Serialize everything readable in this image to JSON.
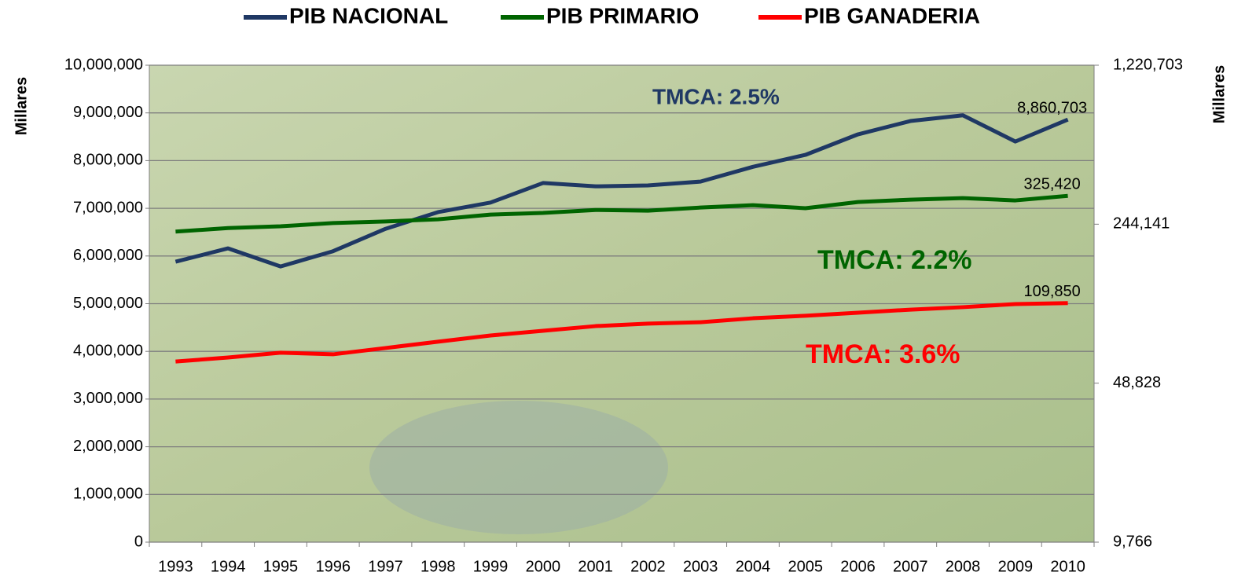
{
  "chart_data": {
    "type": "line",
    "legend_position": "top",
    "y_axis_label": "Millares",
    "y2_axis_label": "Millares",
    "categories": [
      "1993",
      "1994",
      "1995",
      "1996",
      "1997",
      "1998",
      "1999",
      "2000",
      "2001",
      "2002",
      "2003",
      "2004",
      "2005",
      "2006",
      "2007",
      "2008",
      "2009",
      "2010"
    ],
    "ylim": [
      0,
      10000000
    ],
    "yticks": [
      0,
      {
        "value": 1000000,
        "label": "1,000,000"
      },
      {
        "value": 2000000,
        "label": "2,000,000"
      },
      {
        "value": 3000000,
        "label": "3,000,000"
      },
      {
        "value": 4000000,
        "label": "4,000,000"
      },
      {
        "value": 5000000,
        "label": "5,000,000"
      },
      {
        "value": 6000000,
        "label": "6,000,000"
      },
      {
        "value": 7000000,
        "label": "7,000,000"
      },
      {
        "value": 8000000,
        "label": "8,000,000"
      },
      {
        "value": 9000000,
        "label": "9,000,000"
      },
      {
        "value": 10000000,
        "label": "10,000,000"
      }
    ],
    "y2_scale": "log",
    "y2lim": [
      9766,
      1220703
    ],
    "y2ticks": [
      {
        "value": 9766,
        "label": "9,766"
      },
      {
        "value": 48828,
        "label": "48,828"
      },
      {
        "value": 244141,
        "label": "244,141"
      },
      {
        "value": 1220703,
        "label": "1,220,703"
      }
    ],
    "grid": true,
    "series": [
      {
        "name": "PIB NACIONAL",
        "color": "#1f3864",
        "values": [
          5880000,
          6160000,
          5780000,
          6100000,
          6570000,
          6920000,
          7120000,
          7530000,
          7460000,
          7480000,
          7560000,
          7870000,
          8120000,
          8550000,
          8830000,
          8950000,
          8400000,
          8860703
        ],
        "value_labels": [
          null,
          null,
          null,
          null,
          null,
          null,
          null,
          null,
          null,
          null,
          null,
          null,
          null,
          null,
          null,
          null,
          null,
          "8,860,703"
        ]
      },
      {
        "name": "PIB PRIMARIO",
        "color": "#006400",
        "axis": "y2",
        "values": [
          226500,
          234700,
          239000,
          247000,
          251000,
          256500,
          269000,
          273600,
          282000,
          280000,
          289000,
          296000,
          287000,
          305600,
          313000,
          318000,
          310600,
          325420
        ],
        "value_labels": [
          null,
          null,
          null,
          null,
          null,
          null,
          null,
          null,
          null,
          null,
          null,
          null,
          null,
          null,
          null,
          null,
          null,
          "325,420"
        ]
      },
      {
        "name": "PIB GANADERIA",
        "color": "#ff0000",
        "axis": "y2",
        "values": [
          60800,
          63300,
          66500,
          65400,
          69700,
          74300,
          79100,
          83000,
          87000,
          89200,
          90500,
          94200,
          96600,
          99600,
          102800,
          105400,
          108800,
          109850
        ],
        "value_labels": [
          null,
          null,
          null,
          null,
          null,
          null,
          null,
          null,
          null,
          null,
          null,
          null,
          null,
          null,
          null,
          null,
          null,
          "109,850"
        ]
      }
    ],
    "annotations": [
      {
        "text": "TMCA: 2.5%",
        "color": "#1f3864"
      },
      {
        "text": "TMCA: 2.2%",
        "color": "#006400"
      },
      {
        "text": "TMCA: 3.6%",
        "color": "#ff0000"
      }
    ]
  }
}
